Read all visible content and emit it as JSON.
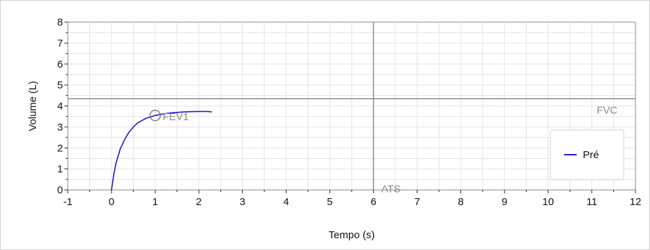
{
  "chart_data": {
    "type": "line",
    "xlabel": "Tempo (s)",
    "ylabel": "Volume (L)",
    "xlim": [
      -1,
      12
    ],
    "ylim": [
      0,
      8
    ],
    "x_ticks": [
      -1,
      0,
      1,
      2,
      3,
      4,
      5,
      6,
      7,
      8,
      9,
      10,
      11,
      12
    ],
    "y_ticks": [
      0,
      1,
      2,
      3,
      4,
      5,
      6,
      7,
      8
    ],
    "grid": true,
    "legend_position": "right",
    "series": [
      {
        "name": "Pré",
        "color": "#1a1acc",
        "x": [
          0,
          0.05,
          0.1,
          0.2,
          0.3,
          0.4,
          0.5,
          0.6,
          0.8,
          1.0,
          1.2,
          1.4,
          1.6,
          1.8,
          2.0,
          2.2,
          2.3
        ],
        "y": [
          0,
          0.7,
          1.25,
          1.95,
          2.4,
          2.75,
          3.0,
          3.2,
          3.42,
          3.55,
          3.63,
          3.68,
          3.71,
          3.73,
          3.74,
          3.74,
          3.72
        ]
      }
    ],
    "reference_lines": {
      "horizontal_y": 4.35,
      "vertical_x": 6
    },
    "annotations": [
      {
        "label": "FEV1",
        "x": 1,
        "y": 3.55,
        "marker": "circle"
      },
      {
        "label": "FVC",
        "x": 11.35,
        "y": 3.8
      },
      {
        "label": "ATS",
        "x": 6.4,
        "y": 0.05
      }
    ]
  }
}
